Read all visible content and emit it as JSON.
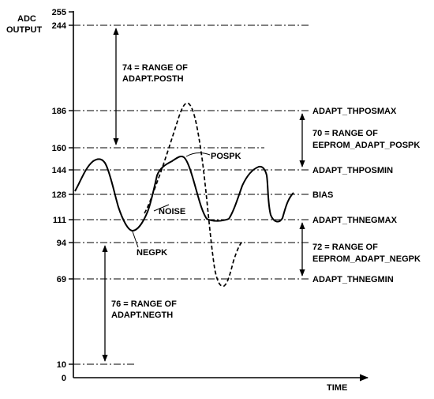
{
  "axis": {
    "y_title_line1": "ADC",
    "y_title_line2": "OUTPUT",
    "x_title": "TIME",
    "ticks": [
      "255",
      "244",
      "186",
      "160",
      "144",
      "128",
      "111",
      "94",
      "69",
      "10",
      "0"
    ]
  },
  "thresholds": {
    "thposmax": "ADAPT_THPOSMAX",
    "thposmin": "ADAPT_THPOSMIN",
    "bias": "BIAS",
    "thnegmax": "ADAPT_THNEGMAX",
    "thnegmin": "ADAPT_THNEGMIN"
  },
  "ranges": {
    "r74_line1": "74 = RANGE OF",
    "r74_line2": "ADAPT.POSTH",
    "r70_line1": "70 = RANGE OF",
    "r70_line2": "EEPROM_ADAPT_POSPK",
    "r72_line1": "72 = RANGE OF",
    "r72_line2": "EEPROM_ADAPT_NEGPK",
    "r76_line1": "76 = RANGE OF",
    "r76_line2": "ADAPT.NEGTH"
  },
  "signals": {
    "pospk": "POSPK",
    "noise": "NOISE",
    "negpk": "NEGPK"
  }
}
